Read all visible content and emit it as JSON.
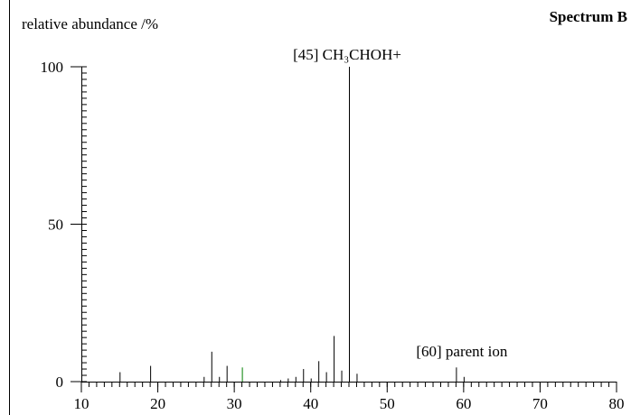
{
  "chart_data": {
    "type": "stick",
    "title": "Spectrum B",
    "ylabel": "relative abundance /%",
    "x": [
      15,
      19,
      26,
      27,
      28,
      29,
      31,
      36,
      37,
      38,
      39,
      40,
      41,
      42,
      43,
      44,
      45,
      46,
      59,
      60
    ],
    "values": [
      3,
      5,
      1.5,
      9.5,
      1.5,
      5,
      4.5,
      0.5,
      1,
      1.5,
      4,
      1,
      6.5,
      3,
      14.5,
      3.5,
      100,
      2.5,
      4.5,
      1.5
    ],
    "colors": [
      "#000000",
      "#000000",
      "#000000",
      "#000000",
      "#000000",
      "#000000",
      "#008000",
      "#000000",
      "#000000",
      "#000000",
      "#000000",
      "#000000",
      "#000000",
      "#000000",
      "#000000",
      "#000000",
      "#000000",
      "#000000",
      "#000000",
      "#000000"
    ],
    "xlim": [
      10,
      80
    ],
    "xticks": [
      10,
      20,
      30,
      40,
      50,
      60,
      70,
      80
    ],
    "x_minor_step": 1,
    "ylim": [
      0,
      100
    ],
    "yticks": [
      0,
      50,
      100
    ],
    "y_minor_step": 2,
    "annotations": [
      {
        "text": "[45] CH₃CHOH+",
        "x": 45
      },
      {
        "text": "[60] parent ion",
        "x": 60
      }
    ]
  }
}
